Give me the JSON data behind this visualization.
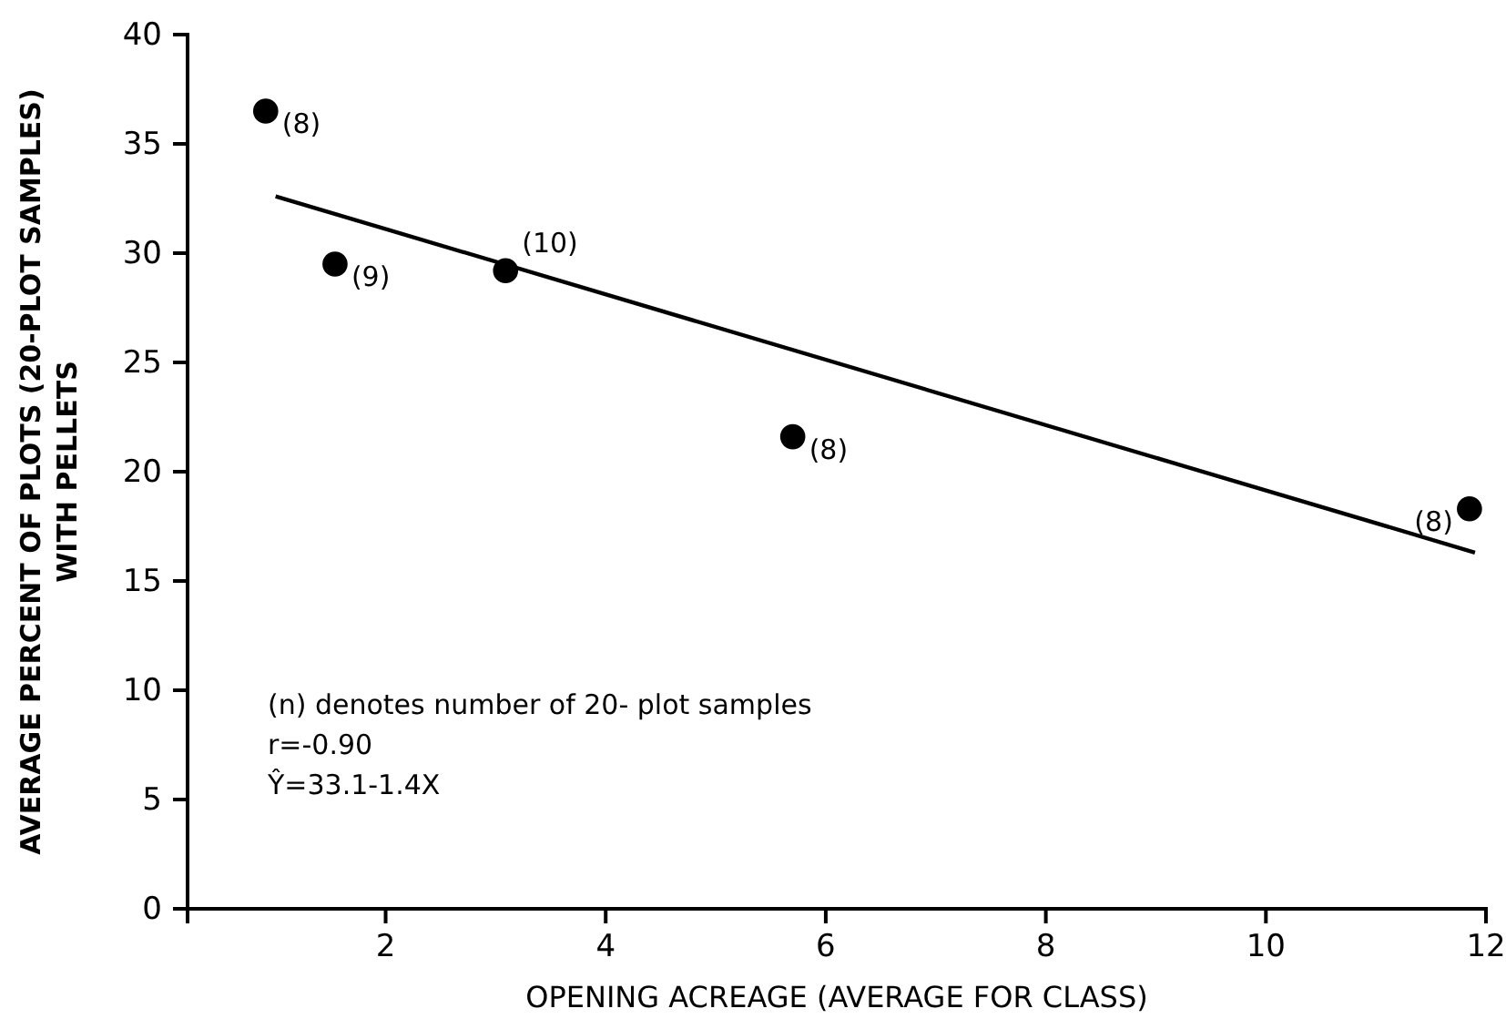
{
  "chart_data": {
    "type": "scatter",
    "xlabel": "OPENING ACREAGE (AVERAGE FOR CLASS)",
    "ylabel": "AVERAGE PERCENT OF PLOTS (20-PLOT SAMPLES)\nWITH PELLETS",
    "xlim": [
      0.2,
      12
    ],
    "xticks": [
      2,
      4,
      6,
      8,
      10,
      12
    ],
    "ylim": [
      0,
      40
    ],
    "yticks": [
      0,
      5,
      10,
      15,
      20,
      25,
      30,
      35,
      40
    ],
    "grid": false,
    "marker": "circle",
    "series": [
      {
        "color": "#000000",
        "x": [
          0.91,
          1.54,
          3.09,
          5.7,
          11.85
        ],
        "values": [
          36.5,
          29.5,
          29.2,
          21.6,
          18.3
        ]
      },
      {
        "type": "line",
        "color": "#000000",
        "line_style": "solid",
        "marker": "none",
        "x": [
          1.0,
          11.9
        ],
        "values": [
          32.6,
          16.3
        ]
      }
    ],
    "annotations": [
      {
        "text": "(8)",
        "x": 0.91,
        "y": 36.5
      },
      {
        "text": "(9)",
        "x": 1.54,
        "y": 29.5
      },
      {
        "text": "(10)",
        "x": 3.09,
        "y": 29.2
      },
      {
        "text": "(8)",
        "x": 5.7,
        "y": 21.6
      },
      {
        "text": "(8)",
        "x": 11.85,
        "y": 18.3
      },
      "(n) denotes number of 20- plot samples",
      "r=-0.90",
      "Ŷ=33.1-1.4X"
    ]
  }
}
